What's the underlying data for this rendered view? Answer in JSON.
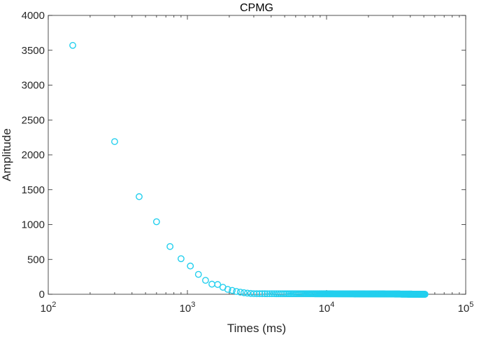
{
  "chart_data": {
    "type": "scatter",
    "title": "CPMG",
    "xlabel": "Times (ms)",
    "ylabel": "Amplitude",
    "xscale": "log",
    "xlim": [
      100,
      100000
    ],
    "ylim": [
      0,
      4000
    ],
    "grid": false,
    "legend": "none",
    "marker": "open-circle",
    "color": "#22cfee",
    "x_ticks": [
      {
        "base": "10",
        "exp": "2",
        "value": 100
      },
      {
        "base": "10",
        "exp": "3",
        "value": 1000
      },
      {
        "base": "10",
        "exp": "4",
        "value": 10000
      },
      {
        "base": "10",
        "exp": "5",
        "value": 100000
      }
    ],
    "y_ticks": [
      "0",
      "500",
      "1000",
      "1500",
      "2000",
      "2500",
      "3000",
      "3500",
      "4000"
    ],
    "series": [
      {
        "x": [
          150,
          300,
          450,
          600,
          750,
          900,
          1050,
          1200,
          1350,
          1500,
          1650,
          1800,
          1950,
          2100,
          2250,
          2400,
          2550,
          2700,
          2850,
          3000
        ],
        "y": [
          3570,
          2190,
          1400,
          1040,
          685,
          510,
          405,
          285,
          200,
          145,
          140,
          100,
          70,
          55,
          40,
          30,
          22,
          16,
          12,
          9
        ],
        "tail": {
          "dt": 150,
          "x_start": 3150,
          "x_end": 51000,
          "y_start": 8,
          "y_end": 0
        }
      }
    ]
  }
}
